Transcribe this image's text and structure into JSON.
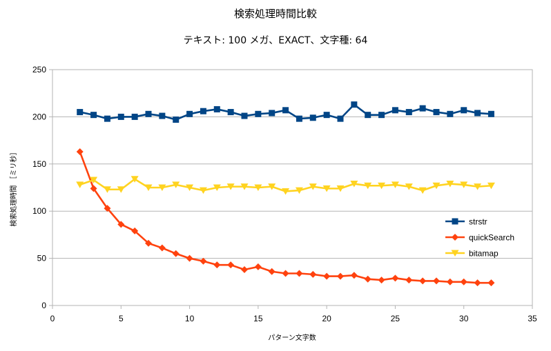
{
  "chart_data": {
    "type": "line",
    "title": "検索処理時間比較",
    "subtitle": "テキスト: 100 メガ、EXACT、文字種: 64",
    "xlabel": "パターン文字数",
    "ylabel": "検索処理時間 ［ミリ秒］",
    "xlim": [
      0,
      35
    ],
    "ylim": [
      0,
      250
    ],
    "x_ticks": [
      0,
      5,
      10,
      15,
      20,
      25,
      30,
      35
    ],
    "y_ticks": [
      0,
      50,
      100,
      150,
      200,
      250
    ],
    "grid": "horizontal",
    "legend_position": "right",
    "x": [
      2,
      3,
      4,
      5,
      6,
      7,
      8,
      9,
      10,
      11,
      12,
      13,
      14,
      15,
      16,
      17,
      18,
      19,
      20,
      21,
      22,
      23,
      24,
      25,
      26,
      27,
      28,
      29,
      30,
      31,
      32
    ],
    "series": [
      {
        "name": "strstr",
        "color": "#004586",
        "marker": "square",
        "values": [
          205,
          202,
          198,
          200,
          200,
          203,
          201,
          197,
          203,
          206,
          208,
          205,
          201,
          203,
          204,
          207,
          198,
          199,
          202,
          198,
          213,
          202,
          202,
          207,
          205,
          209,
          205,
          203,
          207,
          204,
          203
        ]
      },
      {
        "name": "quickSearch",
        "color": "#ff420e",
        "marker": "diamond",
        "values": [
          163,
          124,
          103,
          86,
          79,
          66,
          61,
          55,
          50,
          47,
          43,
          43,
          38,
          41,
          36,
          34,
          34,
          33,
          31,
          31,
          32,
          28,
          27,
          29,
          27,
          26,
          26,
          25,
          25,
          24,
          24
        ]
      },
      {
        "name": "bitamap",
        "color": "#ffd320",
        "marker": "triangle-down",
        "values": [
          128,
          133,
          123,
          123,
          134,
          125,
          125,
          128,
          125,
          122,
          125,
          126,
          126,
          125,
          126,
          121,
          122,
          126,
          124,
          124,
          129,
          127,
          127,
          128,
          126,
          122,
          127,
          129,
          128,
          126,
          127
        ]
      }
    ]
  }
}
